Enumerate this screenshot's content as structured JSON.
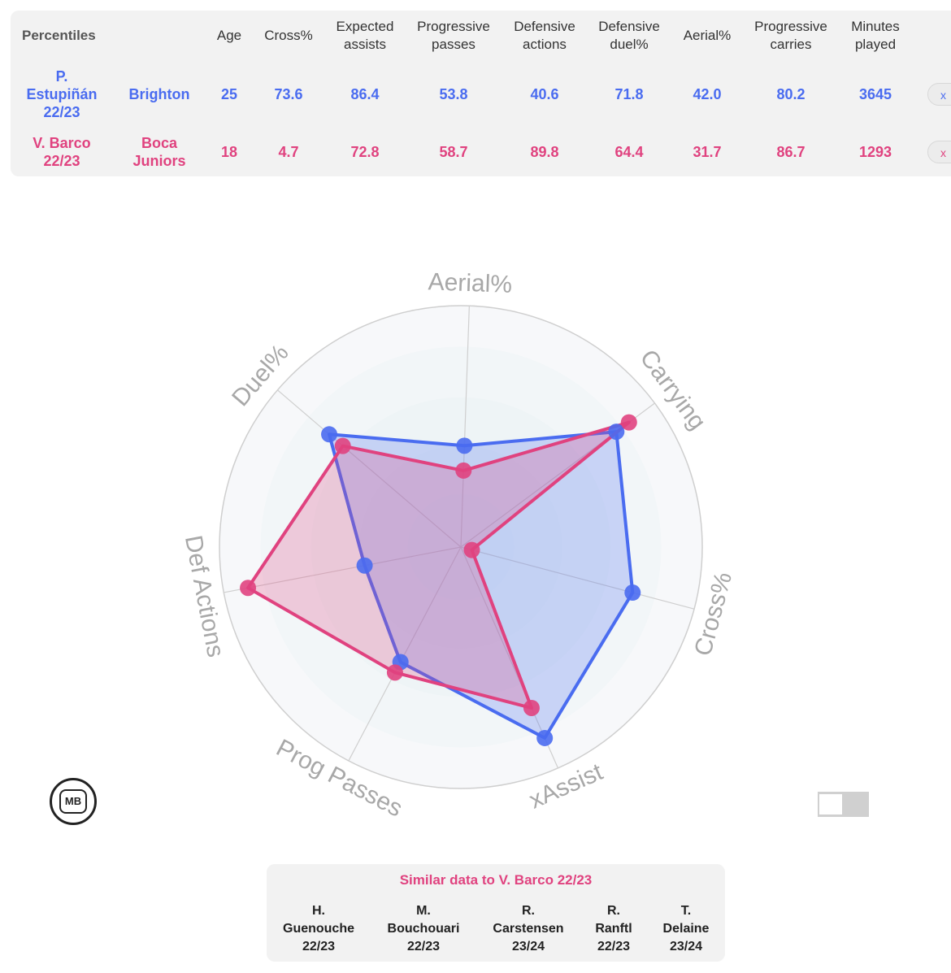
{
  "table": {
    "header_label": "Percentiles",
    "columns": [
      "Age",
      "Cross%",
      "Expected\nassists",
      "Progressive\npasses",
      "Defensive\nactions",
      "Defensive\nduel%",
      "Aerial%",
      "Progressive\ncarries",
      "Minutes\nplayed"
    ],
    "rows": [
      {
        "player": "P.\nEstupiñán\n22/23",
        "team": "Brighton",
        "values": [
          "25",
          "73.6",
          "86.4",
          "53.8",
          "40.6",
          "71.8",
          "42.0",
          "80.2",
          "3645"
        ],
        "color": "#4a6cf0",
        "remove": "x"
      },
      {
        "player": "V. Barco\n22/23",
        "team": "Boca\nJuniors",
        "values": [
          "18",
          "4.7",
          "72.8",
          "58.7",
          "89.8",
          "64.4",
          "31.7",
          "86.7",
          "1293"
        ],
        "color": "#e0427f",
        "remove": "x"
      }
    ]
  },
  "chart_data": {
    "type": "radar",
    "axes": [
      "Aerial%",
      "Carrying",
      "Cross%",
      "xAssist",
      "Prog Passes",
      "Def Actions",
      "Duel%"
    ],
    "range": [
      0,
      100
    ],
    "series": [
      {
        "name": "P. Estupiñán 22/23",
        "values": [
          42.0,
          80.2,
          73.6,
          86.4,
          53.8,
          40.6,
          71.8
        ],
        "color": "#4a6cf0"
      },
      {
        "name": "V. Barco 22/23",
        "values": [
          31.7,
          86.7,
          4.7,
          72.8,
          58.7,
          89.8,
          64.4
        ],
        "color": "#e0427f"
      }
    ]
  },
  "logo_text": "MB",
  "similar": {
    "title": "Similar data to V. Barco 22/23",
    "items": [
      {
        "initial": "H.",
        "surname": "Guenouche",
        "season": "22/23"
      },
      {
        "initial": "M.",
        "surname": "Bouchouari",
        "season": "22/23"
      },
      {
        "initial": "R.",
        "surname": "Carstensen",
        "season": "23/24"
      },
      {
        "initial": "R.",
        "surname": "Ranftl",
        "season": "22/23"
      },
      {
        "initial": "T.",
        "surname": "Delaine",
        "season": "23/24"
      }
    ]
  }
}
